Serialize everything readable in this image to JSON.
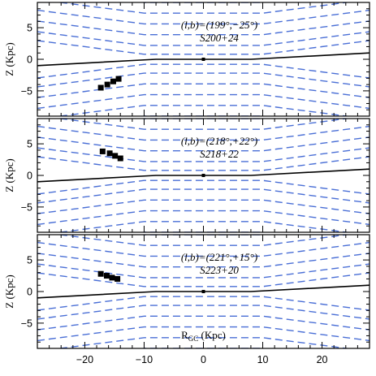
{
  "chart_data": [
    {
      "type": "line",
      "annotation": [
        "(l,b)=(199°,−25°)",
        "S200+24"
      ],
      "ylabel": "Z (Kpc)",
      "xlim": [
        -28,
        28
      ],
      "ylim": [
        -9,
        9
      ],
      "yticks": [
        "5",
        "0",
        "−5"
      ],
      "ytick_values": [
        5,
        0,
        -5
      ],
      "black_line": {
        "x": [
          -28,
          -8,
          8,
          28
        ],
        "y": [
          -1.0,
          0.0,
          0.0,
          1.0
        ]
      },
      "blue_dashed_levels": [
        0.8,
        2.2,
        3.9,
        5.6,
        7.3,
        9.0
      ],
      "blue_dashed_core": [
        -10,
        10
      ],
      "blue_dashed_slope": 0.12,
      "sun_marker": {
        "x": 0,
        "y": 0
      },
      "points": [
        {
          "x": -17.3,
          "y": -4.5
        },
        {
          "x": -16.2,
          "y": -4.0
        },
        {
          "x": -15.2,
          "y": -3.5
        },
        {
          "x": -14.3,
          "y": -3.1
        }
      ]
    },
    {
      "type": "line",
      "annotation": [
        "(l,b)=(218°,+22°)",
        "S218+22"
      ],
      "ylabel": "Z (Kpc)",
      "xlim": [
        -28,
        28
      ],
      "ylim": [
        -9,
        9
      ],
      "yticks": [
        "5",
        "0",
        "−5"
      ],
      "ytick_values": [
        5,
        0,
        -5
      ],
      "black_line": {
        "x": [
          -28,
          -8,
          8,
          28
        ],
        "y": [
          -1.0,
          0.0,
          0.0,
          1.0
        ]
      },
      "blue_dashed_levels": [
        0.8,
        2.2,
        3.9,
        5.6,
        7.3,
        9.0
      ],
      "blue_dashed_core": [
        -10,
        10
      ],
      "blue_dashed_slope": 0.12,
      "sun_marker": {
        "x": 0,
        "y": 0
      },
      "points": [
        {
          "x": -17.0,
          "y": 3.8
        },
        {
          "x": -15.8,
          "y": 3.5
        },
        {
          "x": -14.9,
          "y": 3.1
        },
        {
          "x": -14.0,
          "y": 2.7
        }
      ]
    },
    {
      "type": "line",
      "annotation": [
        "(l,b)=(221°,+15°)",
        "S223+20"
      ],
      "ylabel": "Z (Kpc)",
      "xlabel": "R_GC (Kpc)",
      "xlabel_main": "R",
      "xlabel_sub": "GC",
      "xlabel_rest": " (Kpc)",
      "xlim": [
        -28,
        28
      ],
      "ylim": [
        -9,
        9
      ],
      "xticks": [
        "−20",
        "−10",
        "0",
        "10",
        "20"
      ],
      "xtick_values": [
        -20,
        -10,
        0,
        10,
        20
      ],
      "yticks": [
        "5",
        "0",
        "−5"
      ],
      "ytick_values": [
        5,
        0,
        -5
      ],
      "black_line": {
        "x": [
          -28,
          -8,
          8,
          28
        ],
        "y": [
          -1.0,
          0.0,
          0.0,
          1.0
        ]
      },
      "blue_dashed_levels": [
        0.8,
        2.2,
        3.9,
        5.6,
        7.3,
        9.0
      ],
      "blue_dashed_core": [
        -10,
        10
      ],
      "blue_dashed_slope": 0.12,
      "sun_marker": {
        "x": 0,
        "y": 0
      },
      "points": [
        {
          "x": -17.3,
          "y": 2.8
        },
        {
          "x": -16.3,
          "y": 2.5
        },
        {
          "x": -15.4,
          "y": 2.2
        },
        {
          "x": -14.5,
          "y": 2.0
        }
      ]
    }
  ],
  "colors": {
    "model_lines": "#4a6fd6",
    "warp_line": "#000000",
    "points": "#000000"
  }
}
